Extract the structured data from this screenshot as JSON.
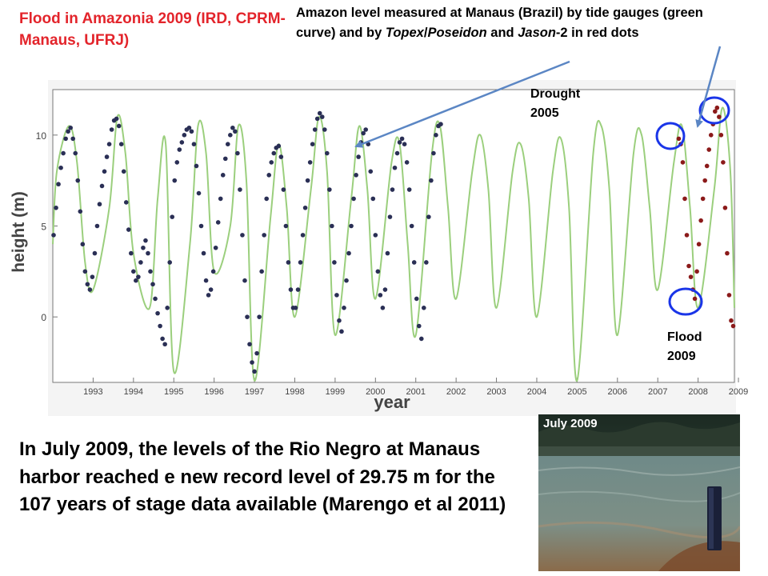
{
  "slide": {
    "title_red": "Flood in Amazonia 2009  (IRD, CPRM-Manaus, UFRJ)",
    "title_black_part1": " Amazon level measured at Manaus (Brazil) by tide gauges (green curve) and by ",
    "title_black_italic1": "Topex",
    "title_black_sep": "/",
    "title_black_italic2": "Poseidon",
    "title_black_part2": " and ",
    "title_black_italic3": "Jason",
    "title_black_part3": "-2 in red dots",
    "drought_label_line1": "Drought",
    "drought_label_line2": "2005",
    "flood_label_line1": "Flood",
    "flood_label_line2": "2009",
    "caption": "In July 2009, the levels of the Rio Negro at Manaus harbor reached e new record level of 29.75 m for the 107 years of stage data available (Marengo et al 2011)",
    "photo_label": "July 2009"
  },
  "colors": {
    "title_red": "#e3242b",
    "curve_green": "#9bcf7d",
    "dots_navy": "#2a2f55",
    "dots_red": "#8b1a1a",
    "circle_blue": "#1a35e8",
    "arrow_blue": "#5b86c4"
  },
  "chart_data": {
    "type": "line",
    "xlabel": "year",
    "ylabel": "height (m)",
    "xlim": [
      1992.5,
      2009.4
    ],
    "ylim": [
      -3.6,
      12.5
    ],
    "x_ticks": [
      "1993",
      "1994",
      "1995",
      "1996",
      "1997",
      "1998",
      "1999",
      "2000",
      "2001",
      "2002",
      "2003",
      "2004",
      "2005",
      "2006",
      "2007",
      "2008",
      "2009"
    ],
    "y_ticks": [
      "0",
      "5",
      "10"
    ],
    "series": [
      {
        "marker": "line",
        "description_color": "green",
        "x": [
          1992.5,
          1992.6,
          1992.9,
          1993.1,
          1993.3,
          1993.5,
          1993.9,
          1994.1,
          1994.3,
          1994.5,
          1994.9,
          1995.1,
          1995.3,
          1995.5,
          1995.9,
          1996.1,
          1996.3,
          1996.5,
          1996.9,
          1997.1,
          1997.3,
          1997.5,
          1997.9,
          1998.1,
          1998.3,
          1998.5,
          1998.9,
          1999.1,
          1999.3,
          1999.5,
          1999.9,
          2000.1,
          2000.3,
          2000.5,
          2000.9,
          2001.1,
          2001.3,
          2001.5,
          2001.9,
          2002.1,
          2002.3,
          2002.5,
          2002.9,
          2003.1,
          2003.3,
          2003.5,
          2003.9,
          2004.1,
          2004.3,
          2004.5,
          2004.9,
          2005.1,
          2005.3,
          2005.5,
          2005.9,
          2006.1,
          2006.3,
          2006.5,
          2006.9,
          2007.1,
          2007.3,
          2007.5,
          2007.9,
          2008.1,
          2008.3,
          2008.5,
          2008.9,
          2009.1,
          2009.3,
          2009.4
        ],
        "y": [
          4.0,
          8.0,
          10.5,
          8.5,
          3.0,
          1.5,
          6.0,
          11.0,
          9.0,
          3.5,
          0.5,
          6.5,
          9.5,
          -3.0,
          4.0,
          10.5,
          9.0,
          2.5,
          5.0,
          10.5,
          7.5,
          -3.5,
          5.5,
          9.5,
          6.0,
          0.0,
          7.0,
          11.0,
          8.0,
          -1.0,
          6.5,
          10.5,
          7.0,
          1.0,
          8.5,
          9.5,
          4.0,
          -1.0,
          9.0,
          10.5,
          6.0,
          1.0,
          8.0,
          10.0,
          7.0,
          0.5,
          8.0,
          9.5,
          6.5,
          0.0,
          8.0,
          9.8,
          6.0,
          -3.5,
          9.0,
          10.5,
          7.0,
          -1.0,
          9.0,
          10.0,
          6.0,
          1.5,
          8.5,
          10.5,
          6.0,
          0.5,
          7.0,
          11.5,
          8.0,
          0.5
        ]
      },
      {
        "marker": "dots",
        "description_color": "navy",
        "x": [
          1992.52,
          1992.58,
          1992.64,
          1992.7,
          1992.76,
          1992.82,
          1992.88,
          1992.94,
          1993.0,
          1993.06,
          1993.12,
          1993.18,
          1993.24,
          1993.3,
          1993.36,
          1993.42,
          1993.48,
          1993.54,
          1993.6,
          1993.66,
          1993.72,
          1993.78,
          1993.84,
          1993.9,
          1993.96,
          1994.02,
          1994.08,
          1994.14,
          1994.2,
          1994.26,
          1994.32,
          1994.38,
          1994.44,
          1994.5,
          1994.56,
          1994.62,
          1994.68,
          1994.74,
          1994.8,
          1994.86,
          1994.92,
          1994.98,
          1995.04,
          1995.1,
          1995.16,
          1995.22,
          1995.28,
          1995.34,
          1995.4,
          1995.46,
          1995.52,
          1995.58,
          1995.64,
          1995.7,
          1995.76,
          1995.82,
          1995.88,
          1995.94,
          1996.0,
          1996.06,
          1996.12,
          1996.18,
          1996.24,
          1996.3,
          1996.36,
          1996.42,
          1996.48,
          1996.54,
          1996.6,
          1996.66,
          1996.72,
          1996.78,
          1996.84,
          1996.9,
          1996.96,
          1997.02,
          1997.08,
          1997.14,
          1997.2,
          1997.26,
          1997.32,
          1997.38,
          1997.44,
          1997.5,
          1997.56,
          1997.62,
          1997.68,
          1997.74,
          1997.8,
          1997.86,
          1997.92,
          1997.98,
          1998.04,
          1998.1,
          1998.16,
          1998.22,
          1998.28,
          1998.34,
          1998.4,
          1998.46,
          1998.52,
          1998.58,
          1998.64,
          1998.7,
          1998.76,
          1998.82,
          1998.88,
          1998.94,
          1999.0,
          1999.06,
          1999.12,
          1999.18,
          1999.24,
          1999.3,
          1999.36,
          1999.42,
          1999.48,
          1999.54,
          1999.6,
          1999.66,
          1999.72,
          1999.78,
          1999.84,
          1999.9,
          1999.96,
          2000.02,
          2000.08,
          2000.14,
          2000.2,
          2000.26,
          2000.32,
          2000.38,
          2000.44,
          2000.5,
          2000.56,
          2000.62,
          2000.68,
          2000.74,
          2000.8,
          2000.86,
          2000.92,
          2000.98,
          2001.04,
          2001.1,
          2001.16,
          2001.22,
          2001.28,
          2001.34,
          2001.4,
          2001.46,
          2001.52,
          2001.58,
          2001.64,
          2001.7,
          2001.76,
          2001.82,
          2001.88,
          2001.94,
          2002.0,
          2002.06,
          2002.12
        ],
        "y": [
          4.5,
          6.0,
          7.3,
          8.2,
          9.0,
          9.8,
          10.2,
          10.4,
          9.8,
          9.0,
          7.5,
          5.8,
          4.0,
          2.5,
          1.8,
          1.5,
          2.2,
          3.5,
          5.0,
          6.2,
          7.2,
          8.0,
          8.8,
          9.5,
          10.3,
          10.8,
          10.9,
          10.5,
          9.5,
          8.0,
          6.3,
          4.8,
          3.5,
          2.5,
          2.0,
          2.2,
          3.0,
          3.8,
          4.2,
          3.5,
          2.5,
          1.8,
          1.0,
          0.2,
          -0.5,
          -1.2,
          -1.5,
          0.5,
          3.0,
          5.5,
          7.5,
          8.5,
          9.2,
          9.6,
          10.0,
          10.3,
          10.4,
          10.2,
          9.5,
          8.3,
          6.8,
          5.0,
          3.5,
          2.0,
          1.2,
          1.5,
          2.5,
          3.8,
          5.2,
          6.5,
          7.8,
          8.7,
          9.5,
          10.0,
          10.4,
          10.2,
          9.0,
          7.0,
          4.5,
          2.0,
          0.0,
          -1.5,
          -2.5,
          -3.0,
          -2.0,
          0.0,
          2.5,
          4.5,
          6.5,
          7.8,
          8.5,
          9.0,
          9.3,
          9.4,
          8.8,
          7.0,
          5.0,
          3.0,
          1.5,
          0.5,
          0.5,
          1.5,
          3.0,
          4.5,
          6.0,
          7.5,
          8.5,
          9.5,
          10.3,
          10.9,
          11.2,
          11.0,
          10.3,
          9.0,
          7.0,
          5.0,
          3.0,
          1.2,
          -0.2,
          -0.8,
          0.5,
          2.0,
          3.5,
          5.0,
          6.5,
          7.8,
          8.8,
          9.6,
          10.1,
          10.3,
          9.5,
          8.0,
          6.5,
          4.5,
          2.5,
          1.2,
          0.5,
          1.5,
          3.5,
          5.5,
          7.0,
          8.2,
          9.0,
          9.6,
          9.8,
          9.5,
          8.5,
          7.0,
          5.0,
          3.0,
          1.0,
          -0.5,
          -1.2,
          0.5,
          3.0,
          5.5,
          7.5,
          9.0,
          10.0,
          10.5,
          10.6
        ]
      },
      {
        "marker": "dots",
        "description_color": "red",
        "x": [
          2008.02,
          2008.07,
          2008.12,
          2008.17,
          2008.22,
          2008.27,
          2008.32,
          2008.37,
          2008.42,
          2008.47,
          2008.52,
          2008.57,
          2008.62,
          2008.67,
          2008.72,
          2008.77,
          2008.82,
          2008.87,
          2008.92,
          2008.97,
          2009.02,
          2009.07,
          2009.12,
          2009.17,
          2009.22,
          2009.27,
          2009.32,
          2009.37
        ],
        "y": [
          9.8,
          9.5,
          8.5,
          6.5,
          4.5,
          2.8,
          2.2,
          1.5,
          1.0,
          2.5,
          4.0,
          5.3,
          6.5,
          7.5,
          8.3,
          9.2,
          10.0,
          10.6,
          11.3,
          11.5,
          11.0,
          10.0,
          8.5,
          6.0,
          3.5,
          1.2,
          -0.2,
          -0.5
        ]
      }
    ]
  }
}
